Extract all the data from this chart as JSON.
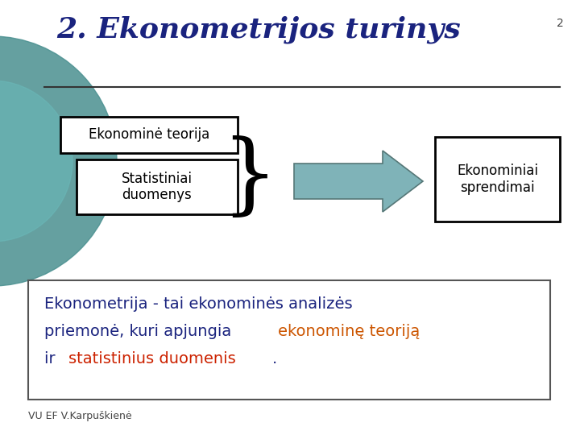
{
  "bg_color": "#ffffff",
  "page_number": "2",
  "title": "2. Ekonometrijos turinys",
  "title_color": "#1a237e",
  "title_fontsize": 26,
  "box1_text": "Ekonominė teorija",
  "box2_text": "Statistiniai\nduomenys",
  "box3_text": "Ekonominiai\nsprendimai",
  "arrow_color": "#7fb3b8",
  "circle_color": "#4a9090",
  "footer": "VU EF V.Karpuškienė",
  "box_edge_color": "#000000",
  "navy_color": "#1a237e",
  "orange_color": "#cc5500",
  "red_color": "#cc2200",
  "line_color": "#333333"
}
